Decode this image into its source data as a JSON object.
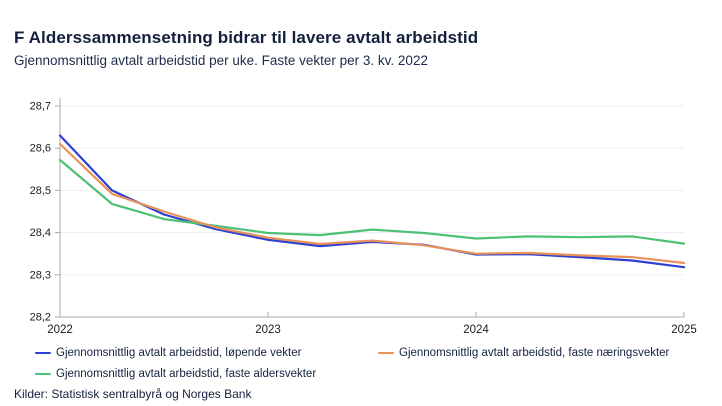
{
  "header": {
    "title": "F Alderssammensetning bidrar til lavere avtalt arbeidstid",
    "subtitle": "Gjennomsnittlig avtalt arbeidstid per uke. Faste vekter per 3. kv. 2022"
  },
  "chart_data": {
    "type": "line",
    "x": [
      "2022K1",
      "2022K2",
      "2022K3",
      "2022K4",
      "2023K1",
      "2023K2",
      "2023K3",
      "2023K4",
      "2024K1",
      "2024K2",
      "2024K3",
      "2024K4",
      "2025K1"
    ],
    "x_tick_labels": [
      "2022",
      "2023",
      "2024",
      "2025"
    ],
    "x_year_tick_indices": [
      0,
      4,
      8,
      12
    ],
    "series": [
      {
        "name": "Gjennomsnittlig avtalt arbeidstid, løpende vekter",
        "color": "#2e3fd4",
        "values": [
          28.63,
          28.5,
          28.443,
          28.408,
          28.383,
          28.368,
          28.378,
          28.371,
          28.348,
          28.349,
          28.342,
          28.334,
          28.318
        ]
      },
      {
        "name": "Gjennomsnittlig avtalt arbeidstid, faste næringsvekter",
        "color": "#e8925a",
        "values": [
          28.61,
          28.492,
          28.45,
          28.412,
          28.388,
          28.373,
          28.381,
          28.37,
          28.35,
          28.352,
          28.346,
          28.342,
          28.328
        ]
      },
      {
        "name": "Gjennomsnittlig avtalt arbeidstid, faste aldersvekter",
        "color": "#4cc173",
        "values": [
          28.572,
          28.468,
          28.432,
          28.416,
          28.399,
          28.394,
          28.407,
          28.399,
          28.386,
          28.391,
          28.389,
          28.391,
          28.374
        ]
      }
    ],
    "ylim": [
      28.2,
      28.7
    ],
    "y_tick_values": [
      28.2,
      28.3,
      28.4,
      28.5,
      28.6,
      28.7
    ],
    "y_tick_labels": [
      "28,2",
      "28,3",
      "28,4",
      "28,5",
      "28,6",
      "28,7"
    ],
    "grid": "horizontal",
    "legend_position": "bottom",
    "title": "F Alderssammensetning bidrar til lavere avtalt arbeidstid",
    "subtitle": "Gjennomsnittlig avtalt arbeidstid per uke. Faste vekter per 3. kv. 2022"
  },
  "style": {
    "grid_color": "#ededed",
    "axis_color": "#a8a8a8",
    "tick_label_color": "#1c1c1c"
  },
  "source": "Kilder: Statistisk sentralbyrå og Norges Bank"
}
